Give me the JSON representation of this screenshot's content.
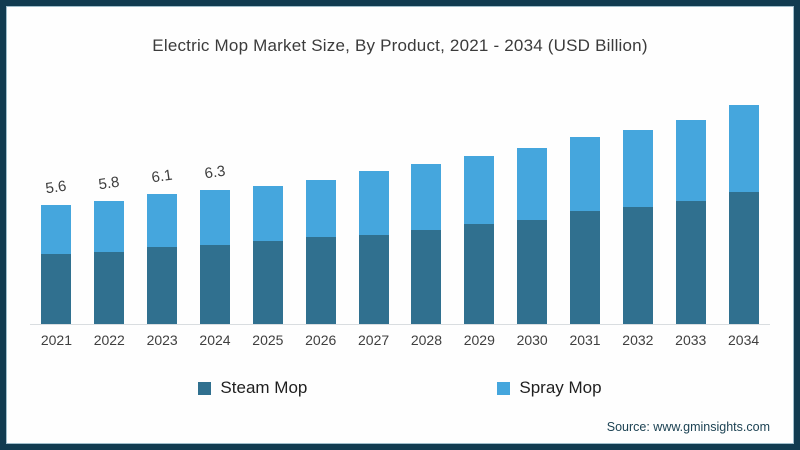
{
  "title": "Electric Mop Market Size, By Product, 2021 - 2034 (USD Billion)",
  "source_text": "Source: www.gminsights.com",
  "legend": {
    "steam_label": "Steam Mop",
    "spray_label": "Spray Mop"
  },
  "colors": {
    "steam": "#30708f",
    "spray": "#45a6dd",
    "frame": "#113b50",
    "axis_line": "#d9dde0"
  },
  "chart_data": {
    "type": "bar",
    "stacked": true,
    "title": "Electric Mop Market Size, By Product, 2021 - 2034 (USD Billion)",
    "unit": "USD Billion",
    "grid": false,
    "legend_position": "bottom",
    "categories": [
      "2021",
      "2022",
      "2023",
      "2024",
      "2025",
      "2026",
      "2027",
      "2028",
      "2029",
      "2030",
      "2031",
      "2032",
      "2033",
      "2034"
    ],
    "series": [
      {
        "name": "Steam Mop",
        "color": "#30708f",
        "values": [
          3.3,
          3.4,
          3.6,
          3.7,
          3.9,
          4.1,
          4.2,
          4.4,
          4.7,
          4.9,
          5.3,
          5.5,
          5.8,
          6.2
        ]
      },
      {
        "name": "Spray Mop",
        "color": "#45a6dd",
        "values": [
          2.3,
          2.4,
          2.5,
          2.6,
          2.6,
          2.7,
          3.0,
          3.1,
          3.2,
          3.4,
          3.5,
          3.6,
          3.8,
          4.1
        ]
      }
    ],
    "totals": [
      5.6,
      5.8,
      6.1,
      6.3,
      6.5,
      6.8,
      7.2,
      7.5,
      7.9,
      8.3,
      8.8,
      9.1,
      9.6,
      10.3
    ],
    "bar_labels": [
      "5.6",
      "5.8",
      "6.1",
      "6.3",
      "",
      "",
      "",
      "",
      "",
      "",
      "",
      "",
      "",
      ""
    ],
    "ylim": [
      0,
      10.5
    ]
  }
}
